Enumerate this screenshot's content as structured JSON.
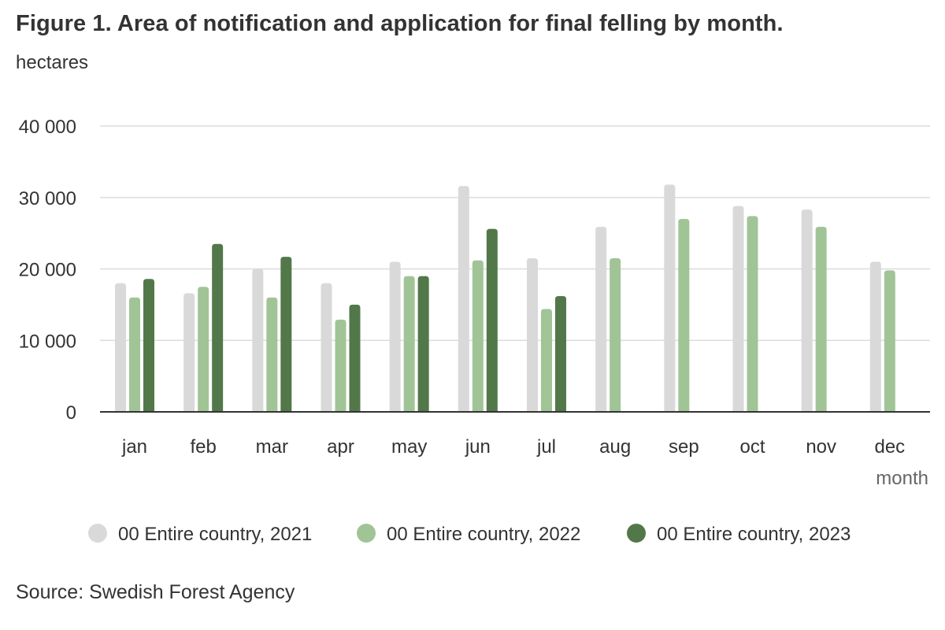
{
  "title": "Figure 1. Area of notification and application for final felling by month.",
  "subtitle": "hectares",
  "source": "Source: Swedish Forest Agency",
  "chart_data": {
    "type": "bar",
    "title": "Figure 1. Area of notification and application for final felling by month.",
    "ylabel": "hectares",
    "xlabel": "month",
    "categories": [
      "jan",
      "feb",
      "mar",
      "apr",
      "may",
      "jun",
      "jul",
      "aug",
      "sep",
      "oct",
      "nov",
      "dec"
    ],
    "ylim": [
      0,
      40000
    ],
    "yticks": [
      0,
      10000,
      20000,
      30000,
      40000
    ],
    "ytick_labels": [
      "0",
      "10 000",
      "20 000",
      "30 000",
      "40 000"
    ],
    "grid": true,
    "legend_position": "bottom",
    "series": [
      {
        "name": "00 Entire country, 2021",
        "color": "#d9d9d9",
        "values": [
          18000,
          16600,
          20000,
          18000,
          21000,
          31600,
          21500,
          25900,
          31800,
          28800,
          28300,
          21000
        ]
      },
      {
        "name": "00 Entire country, 2022",
        "color": "#a1c497",
        "values": [
          16000,
          17500,
          16000,
          12900,
          19000,
          21200,
          14400,
          21500,
          27000,
          27400,
          25900,
          19800
        ]
      },
      {
        "name": "00 Entire country, 2023",
        "color": "#52784a",
        "values": [
          18600,
          23500,
          21700,
          15000,
          19000,
          25600,
          16200,
          null,
          null,
          null,
          null,
          null
        ]
      }
    ]
  }
}
